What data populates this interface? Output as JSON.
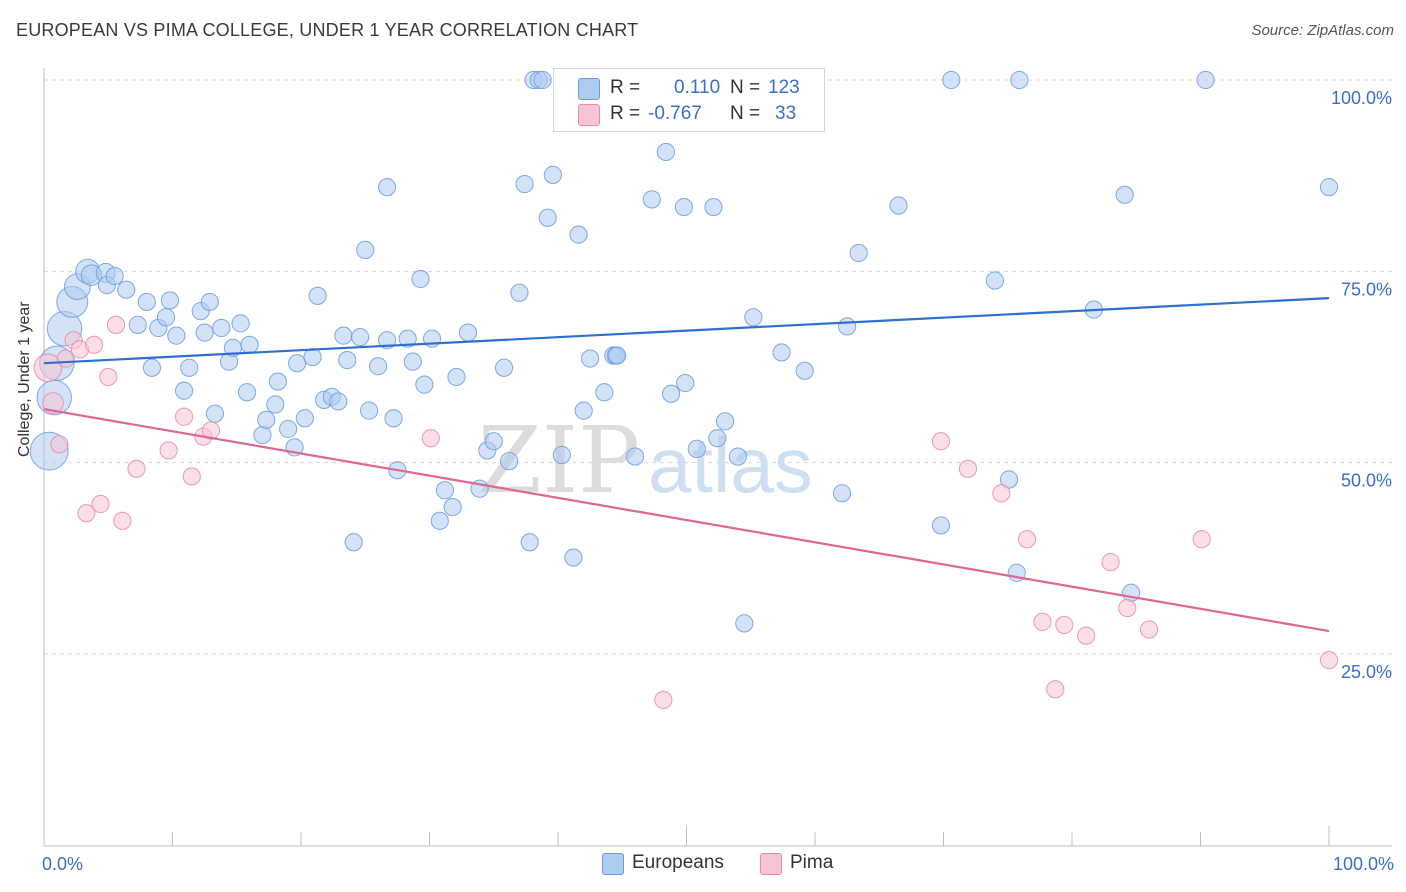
{
  "title": "EUROPEAN VS PIMA COLLEGE, UNDER 1 YEAR CORRELATION CHART",
  "source": "Source: ZipAtlas.com",
  "watermark": {
    "zip": "ZIP",
    "atlas": "atlas"
  },
  "legend": {
    "rows": [
      {
        "r_label": "R =",
        "r_value": "0.110",
        "n_label": "N =",
        "n_value": "123",
        "color": "#aecbf0",
        "border": "#6b9be0"
      },
      {
        "r_label": "R =",
        "r_value": "-0.767",
        "n_label": "N =",
        "n_value": "33",
        "color": "#f7c4d3",
        "border": "#e88aa8"
      }
    ]
  },
  "bottom_legend": {
    "europeans": "Europeans",
    "pima": "Pima"
  },
  "chart_data": {
    "type": "scatter",
    "title": "EUROPEAN VS PIMA COLLEGE, UNDER 1 YEAR CORRELATION CHART",
    "xlabel": "",
    "ylabel": "College, Under 1 year",
    "xlim": [
      0,
      100
    ],
    "ylim": [
      0,
      105
    ],
    "x_tick_labels": [
      "0.0%",
      "100.0%"
    ],
    "y_tick_labels": [
      "25.0%",
      "50.0%",
      "75.0%",
      "100.0%"
    ],
    "y_ticks": [
      25,
      50,
      75,
      100
    ],
    "grid": true,
    "legend_position": "top-center",
    "series": [
      {
        "name": "Europeans",
        "color": "#6b9be0",
        "fill": "#aecbf0",
        "trend": {
          "x": [
            0,
            100
          ],
          "y": [
            63.0,
            71.5
          ],
          "color": "#2f6fd0"
        },
        "points": [
          [
            0.4,
            51.5,
            2.2
          ],
          [
            0.8,
            58.5,
            2.0
          ],
          [
            1.0,
            63.0,
            2.0
          ],
          [
            1.6,
            67.5,
            2.0
          ],
          [
            2.2,
            71.0,
            1.8
          ],
          [
            2.6,
            73.0,
            1.5
          ],
          [
            3.4,
            75.0,
            1.4
          ],
          [
            3.7,
            74.5,
            1.2
          ],
          [
            4.8,
            74.8,
            1.1
          ],
          [
            4.9,
            73.2,
            1.0
          ],
          [
            5.5,
            74.4,
            1.0
          ],
          [
            6.4,
            72.6,
            1.0
          ],
          [
            7.3,
            68.0,
            1.0
          ],
          [
            8.0,
            71.0,
            1.0
          ],
          [
            8.4,
            62.4,
            1.0
          ],
          [
            8.9,
            67.6,
            1.0
          ],
          [
            9.5,
            69.0,
            1.0
          ],
          [
            9.8,
            71.2,
            1.0
          ],
          [
            10.3,
            66.6,
            1.0
          ],
          [
            10.9,
            59.4,
            1.0
          ],
          [
            11.3,
            62.4,
            1.0
          ],
          [
            12.2,
            69.8,
            1.0
          ],
          [
            12.5,
            67.0,
            1.0
          ],
          [
            12.9,
            71.0,
            1.0
          ],
          [
            13.3,
            56.4,
            1.0
          ],
          [
            13.8,
            67.6,
            1.0
          ],
          [
            14.4,
            63.2,
            1.0
          ],
          [
            14.7,
            65.0,
            1.0
          ],
          [
            15.3,
            68.2,
            1.0
          ],
          [
            16.0,
            65.4,
            1.0
          ],
          [
            15.8,
            59.2,
            1.0
          ],
          [
            17.0,
            53.6,
            1.0
          ],
          [
            17.3,
            55.6,
            1.0
          ],
          [
            18.0,
            57.6,
            1.0
          ],
          [
            18.2,
            60.6,
            1.0
          ],
          [
            19.0,
            54.4,
            1.0
          ],
          [
            19.5,
            52.0,
            1.0
          ],
          [
            19.7,
            63.0,
            1.0
          ],
          [
            20.3,
            55.8,
            1.0
          ],
          [
            20.9,
            63.8,
            1.0
          ],
          [
            21.3,
            71.8,
            1.0
          ],
          [
            21.8,
            58.2,
            1.0
          ],
          [
            22.4,
            58.6,
            1.0
          ],
          [
            22.9,
            58.0,
            1.0
          ],
          [
            23.3,
            66.6,
            1.0
          ],
          [
            23.6,
            63.4,
            1.0
          ],
          [
            24.1,
            39.6,
            1.0
          ],
          [
            24.6,
            66.4,
            1.0
          ],
          [
            25.0,
            77.8,
            1.0
          ],
          [
            25.3,
            56.8,
            1.0
          ],
          [
            26.0,
            62.6,
            1.0
          ],
          [
            26.7,
            86.0,
            1.0
          ],
          [
            27.2,
            55.8,
            1.0
          ],
          [
            27.5,
            49.0,
            1.0
          ],
          [
            28.3,
            66.2,
            1.0
          ],
          [
            28.7,
            63.2,
            1.0
          ],
          [
            29.3,
            74.0,
            1.0
          ],
          [
            29.6,
            60.2,
            1.0
          ],
          [
            30.2,
            66.2,
            1.0
          ],
          [
            30.8,
            42.4,
            1.0
          ],
          [
            31.2,
            46.4,
            1.0
          ],
          [
            31.8,
            44.2,
            1.0
          ],
          [
            32.1,
            61.2,
            1.0
          ],
          [
            33.0,
            67.0,
            1.0
          ],
          [
            33.9,
            46.6,
            1.0
          ],
          [
            34.5,
            51.6,
            1.0
          ],
          [
            35.0,
            52.8,
            1.0
          ],
          [
            35.8,
            62.4,
            1.0
          ],
          [
            36.2,
            50.2,
            1.0
          ],
          [
            37.0,
            72.2,
            1.0
          ],
          [
            37.4,
            86.4,
            1.0
          ],
          [
            37.8,
            39.6,
            1.0
          ],
          [
            38.1,
            100.0,
            1.0
          ],
          [
            38.5,
            100.0,
            1.0
          ],
          [
            39.2,
            82.0,
            1.0
          ],
          [
            39.6,
            87.6,
            1.0
          ],
          [
            40.3,
            51.0,
            1.0
          ],
          [
            40.7,
            100.0,
            1.0
          ],
          [
            41.2,
            37.6,
            1.0
          ],
          [
            41.6,
            79.8,
            1.0
          ],
          [
            42.0,
            56.8,
            1.0
          ],
          [
            42.5,
            63.6,
            1.0
          ],
          [
            43.6,
            59.2,
            1.0
          ],
          [
            44.3,
            64.0,
            1.0
          ],
          [
            44.5,
            64.0,
            1.0
          ],
          [
            45.5,
            100.0,
            1.0
          ],
          [
            46.0,
            50.8,
            1.0
          ],
          [
            47.3,
            84.4,
            1.0
          ],
          [
            48.4,
            90.6,
            1.0
          ],
          [
            48.8,
            59.0,
            1.0
          ],
          [
            49.9,
            60.4,
            1.0
          ],
          [
            50.8,
            51.8,
            1.0
          ],
          [
            51.3,
            100.0,
            1.0
          ],
          [
            49.8,
            83.4,
            1.0
          ],
          [
            52.1,
            83.4,
            1.0
          ],
          [
            52.4,
            53.2,
            1.0
          ],
          [
            53.0,
            55.4,
            1.0
          ],
          [
            54.0,
            50.8,
            1.0
          ],
          [
            54.5,
            29.0,
            1.0
          ],
          [
            55.2,
            69.0,
            1.0
          ],
          [
            55.4,
            100.0,
            1.0
          ],
          [
            57.4,
            64.4,
            1.0
          ],
          [
            60.0,
            100.0,
            1.0
          ],
          [
            59.2,
            62.0,
            1.0
          ],
          [
            62.1,
            46.0,
            1.0
          ],
          [
            62.5,
            67.8,
            1.0
          ],
          [
            63.4,
            77.4,
            1.0
          ],
          [
            66.5,
            83.6,
            1.0
          ],
          [
            69.8,
            41.8,
            1.0
          ],
          [
            70.6,
            100.0,
            1.0
          ],
          [
            74.0,
            73.8,
            1.0
          ],
          [
            75.1,
            47.8,
            1.0
          ],
          [
            75.7,
            35.6,
            1.0
          ],
          [
            75.9,
            100.0,
            1.0
          ],
          [
            81.7,
            70.0,
            1.0
          ],
          [
            84.6,
            33.0,
            1.0
          ],
          [
            84.1,
            85.0,
            1.0
          ],
          [
            90.4,
            100.0,
            1.0
          ],
          [
            100.0,
            86.0,
            1.0
          ],
          [
            38.8,
            100.0,
            1.0
          ],
          [
            26.7,
            66.0,
            1.0
          ],
          [
            44.6,
            64.0,
            1.0
          ],
          [
            46.8,
            100.0,
            1.0
          ]
        ]
      },
      {
        "name": "Pima",
        "color": "#e88aa8",
        "fill": "#f7c4d3",
        "trend": {
          "x": [
            0,
            100
          ],
          "y": [
            57.0,
            28.0
          ],
          "color": "#e06694"
        },
        "points": [
          [
            0.3,
            62.4,
            1.6
          ],
          [
            0.7,
            57.8,
            1.2
          ],
          [
            1.2,
            52.4,
            1.0
          ],
          [
            1.7,
            63.6,
            1.0
          ],
          [
            2.3,
            66.0,
            1.0
          ],
          [
            2.8,
            64.8,
            1.0
          ],
          [
            3.3,
            43.4,
            1.0
          ],
          [
            3.9,
            65.4,
            1.0
          ],
          [
            4.4,
            44.6,
            1.0
          ],
          [
            5.0,
            61.2,
            1.0
          ],
          [
            5.6,
            68.0,
            1.0
          ],
          [
            6.1,
            42.4,
            1.0
          ],
          [
            7.2,
            49.2,
            1.0
          ],
          [
            9.7,
            51.6,
            1.0
          ],
          [
            10.9,
            56.0,
            1.0
          ],
          [
            11.5,
            48.2,
            1.0
          ],
          [
            12.4,
            53.4,
            1.0
          ],
          [
            13.0,
            54.2,
            1.0
          ],
          [
            30.1,
            53.2,
            1.0
          ],
          [
            48.2,
            19.0,
            1.0
          ],
          [
            69.8,
            52.8,
            1.0
          ],
          [
            71.9,
            49.2,
            1.0
          ],
          [
            74.5,
            46.0,
            1.0
          ],
          [
            76.5,
            40.0,
            1.0
          ],
          [
            77.7,
            29.2,
            1.0
          ],
          [
            78.7,
            20.4,
            1.0
          ],
          [
            79.4,
            28.8,
            1.0
          ],
          [
            81.1,
            27.4,
            1.0
          ],
          [
            83.0,
            37.0,
            1.0
          ],
          [
            84.3,
            31.0,
            1.0
          ],
          [
            86.0,
            28.2,
            1.0
          ],
          [
            90.1,
            40.0,
            1.0
          ],
          [
            100.0,
            24.2,
            1.0
          ]
        ]
      }
    ]
  }
}
